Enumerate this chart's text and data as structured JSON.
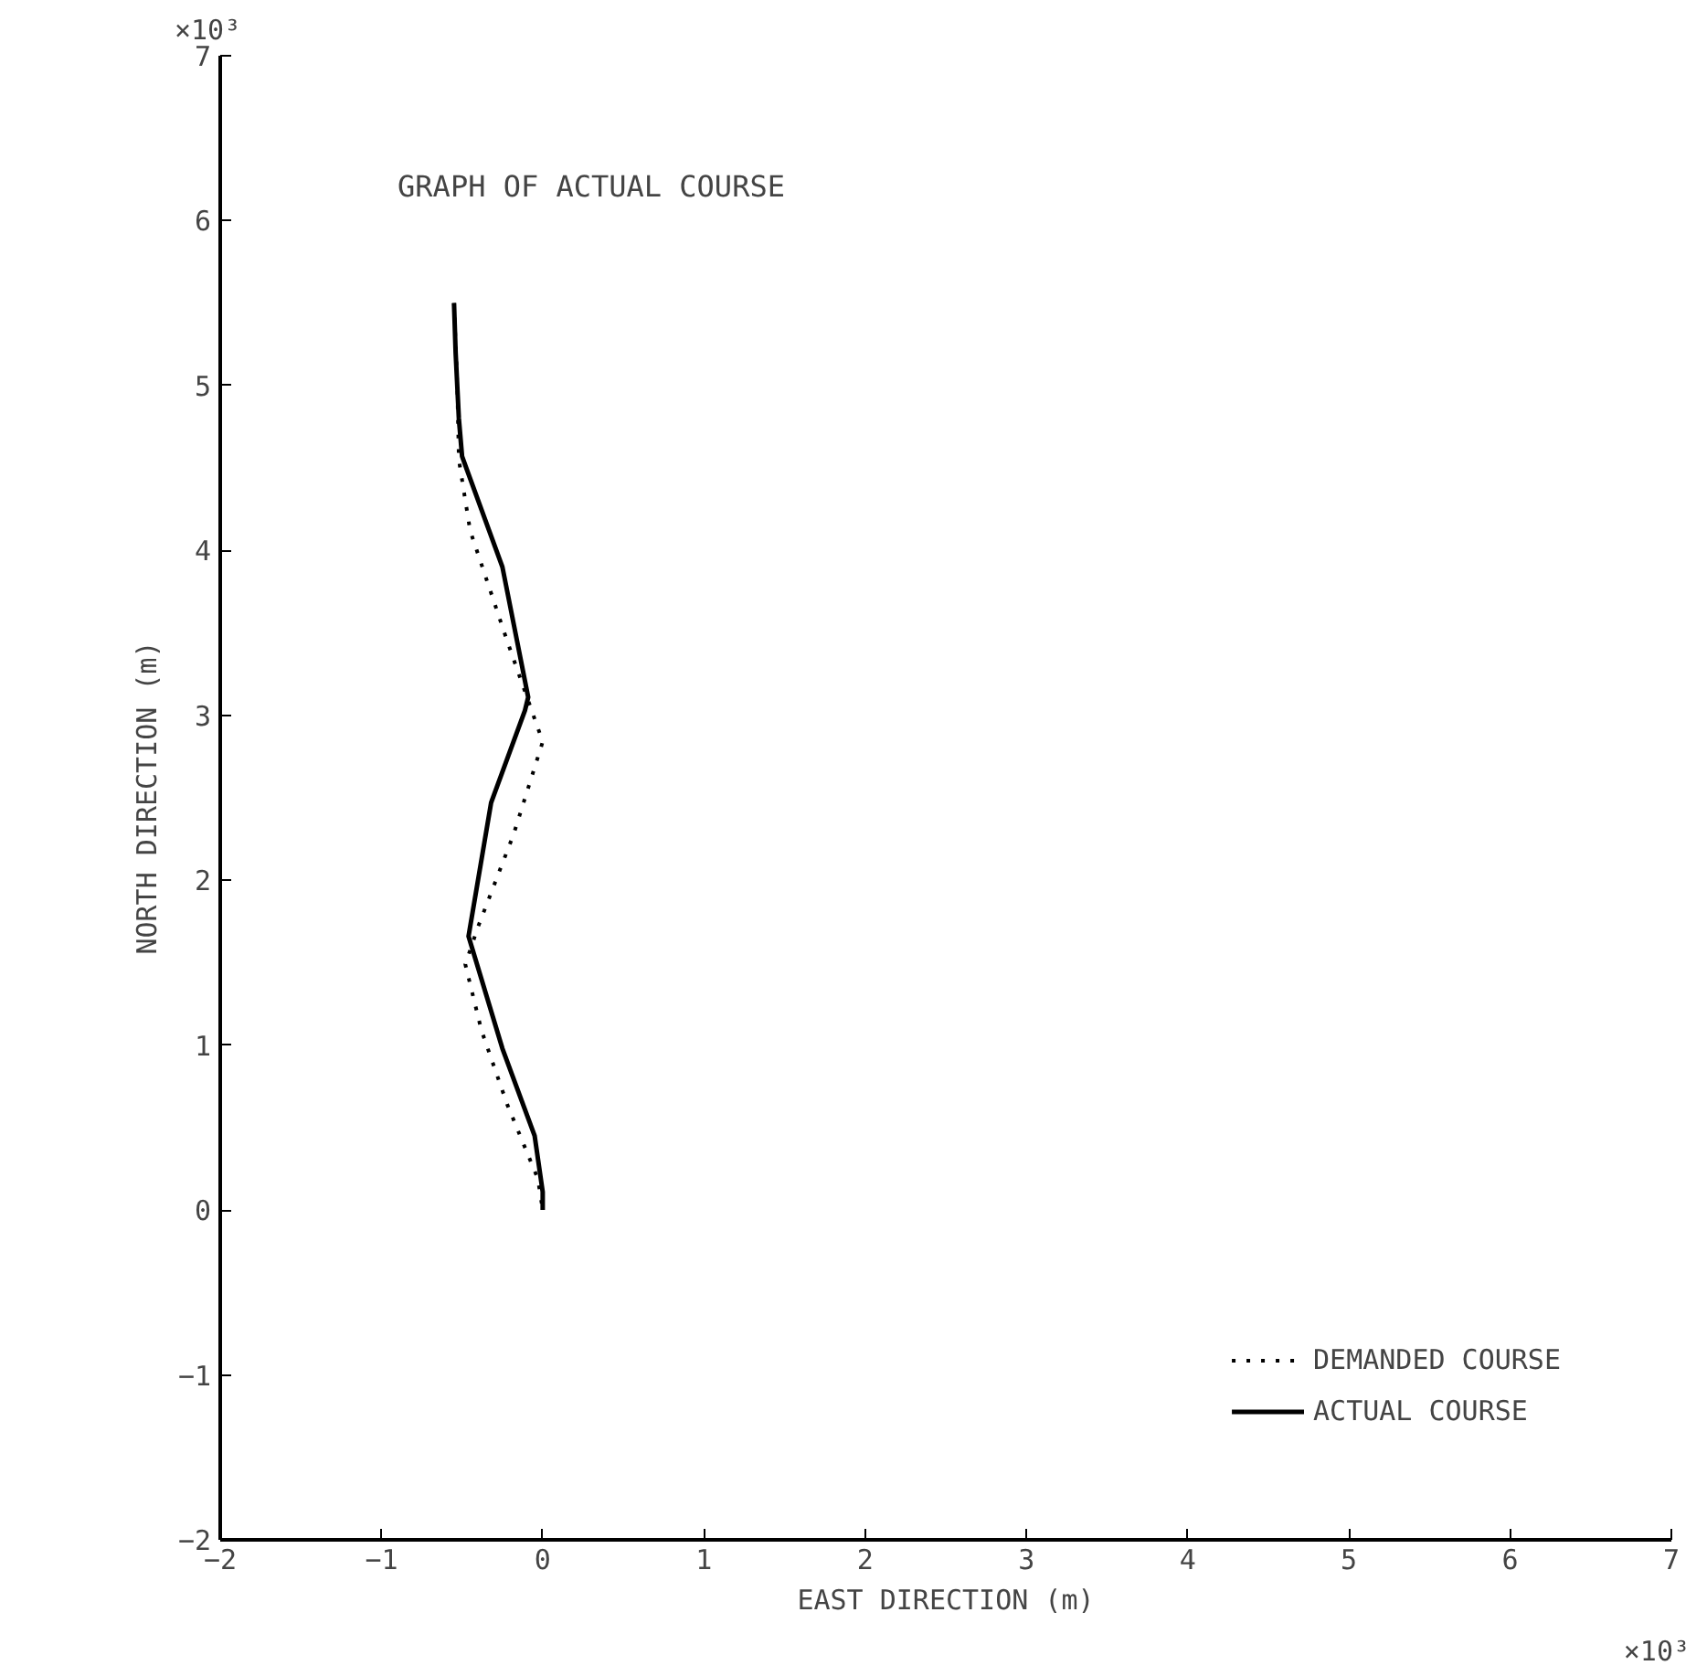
{
  "chart_data": {
    "type": "line",
    "title": "GRAPH OF ACTUAL COURSE",
    "xlabel": "EAST DIRECTION (m)",
    "ylabel": "NORTH DIRECTION (m)",
    "annotations": [
      "×10³",
      "×10³"
    ],
    "xlim": [
      -2,
      7
    ],
    "ylim": [
      -2,
      7
    ],
    "xticks": [
      -2,
      -1,
      0,
      1,
      2,
      3,
      4,
      5,
      6,
      7
    ],
    "yticks": [
      -2,
      -1,
      0,
      1,
      2,
      3,
      4,
      5,
      6,
      7
    ],
    "grid": false,
    "legend": "bottom right",
    "marker": "none",
    "series": [
      {
        "name": "DEMANDED COURSE",
        "color": "#000000",
        "line_style": "dotted",
        "x": [
          -0.55,
          -0.53,
          -0.52,
          -0.45,
          -0.22,
          -0.13,
          0.0,
          -0.18,
          -0.4,
          -0.48,
          -0.38,
          -0.22,
          -0.03,
          0.0
        ],
        "values": [
          5.5,
          5.0,
          4.55,
          4.12,
          3.45,
          3.2,
          2.84,
          2.28,
          1.72,
          1.49,
          1.09,
          0.64,
          0.19,
          0.0
        ]
      },
      {
        "name": "ACTUAL COURSE",
        "color": "#000000",
        "line_style": "solid",
        "x": [
          -0.55,
          -0.54,
          -0.52,
          -0.5,
          -0.25,
          -0.09,
          -0.11,
          -0.32,
          -0.46,
          -0.25,
          -0.05,
          0.0,
          0.0
        ],
        "values": [
          5.5,
          5.2,
          4.8,
          4.57,
          3.9,
          3.11,
          3.03,
          2.47,
          1.66,
          0.98,
          0.45,
          0.11,
          0.0
        ]
      }
    ]
  }
}
